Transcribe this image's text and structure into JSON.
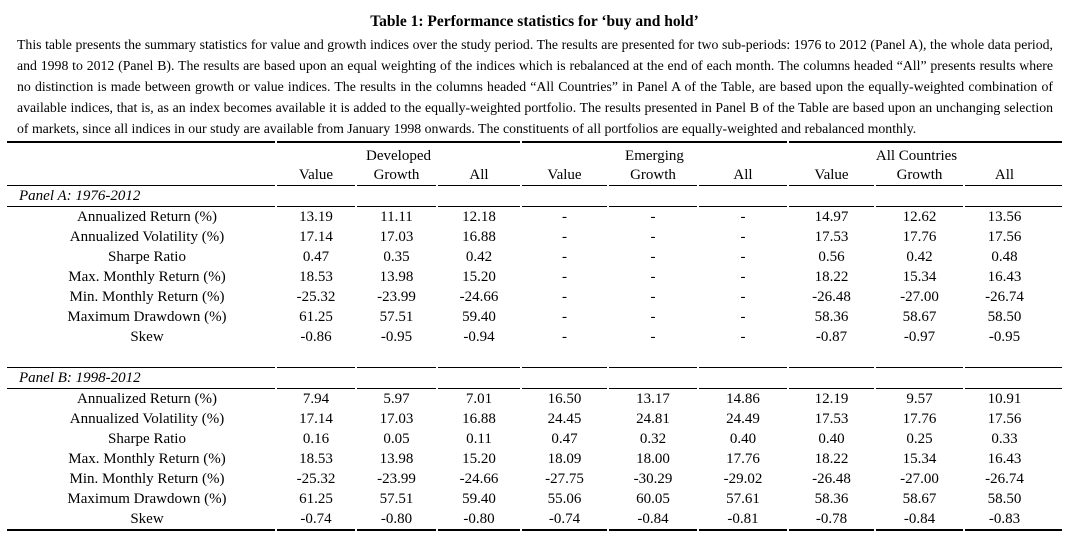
{
  "title": "Table 1: Performance statistics for ‘buy and hold’",
  "caption": "This table presents the summary statistics for value and growth indices over the study period. The results are presented for two sub-periods: 1976 to 2012 (Panel A), the whole data period, and 1998 to 2012 (Panel B). The results are based upon an equal weighting of the indices which is rebalanced at the end of each month. The columns headed “All” presents results where no distinction is made between growth or value indices. The results in the columns headed “All Countries” in Panel A of the Table, are based upon the equally-weighted combination of available indices, that is, as an index becomes available it is added to the equally-weighted portfolio.  The results presented in Panel B of the Table are based upon an unchanging selection of markets, since all indices in our study are available from January 1998 onwards.  The constituents of all portfolios are equally-weighted and rebalanced monthly.",
  "table": {
    "col_groups": [
      "Developed",
      "Emerging",
      "All Countries"
    ],
    "sub_headers": [
      "Value",
      "Growth",
      "All",
      "Value",
      "Growth",
      "All",
      "Value",
      "Growth",
      "All"
    ],
    "panels": [
      {
        "label": "Panel A: 1976-2012",
        "rows": [
          {
            "label": "Annualized Return (%)",
            "values": [
              "13.19",
              "11.11",
              "12.18",
              "-",
              "-",
              "-",
              "14.97",
              "12.62",
              "13.56"
            ]
          },
          {
            "label": "Annualized Volatility (%)",
            "values": [
              "17.14",
              "17.03",
              "16.88",
              "-",
              "-",
              "-",
              "17.53",
              "17.76",
              "17.56"
            ]
          },
          {
            "label": "Sharpe Ratio",
            "values": [
              "0.47",
              "0.35",
              "0.42",
              "-",
              "-",
              "-",
              "0.56",
              "0.42",
              "0.48"
            ]
          },
          {
            "label": "Max. Monthly Return (%)",
            "values": [
              "18.53",
              "13.98",
              "15.20",
              "-",
              "-",
              "-",
              "18.22",
              "15.34",
              "16.43"
            ]
          },
          {
            "label": "Min. Monthly Return (%)",
            "values": [
              "-25.32",
              "-23.99",
              "-24.66",
              "-",
              "-",
              "-",
              "-26.48",
              "-27.00",
              "-26.74"
            ]
          },
          {
            "label": "Maximum Drawdown (%)",
            "values": [
              "61.25",
              "57.51",
              "59.40",
              "-",
              "-",
              "-",
              "58.36",
              "58.67",
              "58.50"
            ]
          },
          {
            "label": "Skew",
            "values": [
              "-0.86",
              "-0.95",
              "-0.94",
              "-",
              "-",
              "-",
              "-0.87",
              "-0.97",
              "-0.95"
            ]
          }
        ]
      },
      {
        "label": "Panel B: 1998-2012",
        "rows": [
          {
            "label": "Annualized Return (%)",
            "values": [
              "7.94",
              "5.97",
              "7.01",
              "16.50",
              "13.17",
              "14.86",
              "12.19",
              "9.57",
              "10.91"
            ]
          },
          {
            "label": "Annualized Volatility (%)",
            "values": [
              "17.14",
              "17.03",
              "16.88",
              "24.45",
              "24.81",
              "24.49",
              "17.53",
              "17.76",
              "17.56"
            ]
          },
          {
            "label": "Sharpe Ratio",
            "values": [
              "0.16",
              "0.05",
              "0.11",
              "0.47",
              "0.32",
              "0.40",
              "0.40",
              "0.25",
              "0.33"
            ]
          },
          {
            "label": "Max. Monthly Return (%)",
            "values": [
              "18.53",
              "13.98",
              "15.20",
              "18.09",
              "18.00",
              "17.76",
              "18.22",
              "15.34",
              "16.43"
            ]
          },
          {
            "label": "Min. Monthly Return (%)",
            "values": [
              "-25.32",
              "-23.99",
              "-24.66",
              "-27.75",
              "-30.29",
              "-29.02",
              "-26.48",
              "-27.00",
              "-26.74"
            ]
          },
          {
            "label": "Maximum Drawdown (%)",
            "values": [
              "61.25",
              "57.51",
              "59.40",
              "55.06",
              "60.05",
              "57.61",
              "58.36",
              "58.67",
              "58.50"
            ]
          },
          {
            "label": "Skew",
            "values": [
              "-0.74",
              "-0.80",
              "-0.80",
              "-0.74",
              "-0.84",
              "-0.81",
              "-0.78",
              "-0.84",
              "-0.83"
            ]
          }
        ]
      }
    ]
  }
}
